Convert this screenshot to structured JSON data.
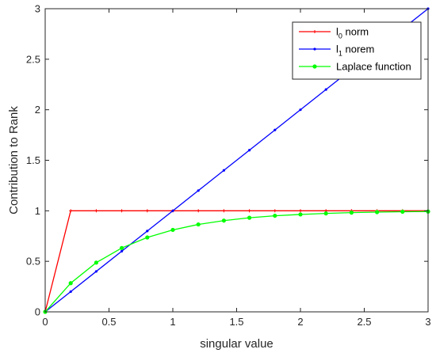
{
  "chart_data": {
    "type": "line",
    "xlabel": "singular value",
    "ylabel": "Contribution to Rank",
    "xlim": [
      0,
      3
    ],
    "ylim": [
      0,
      3
    ],
    "xticks": [
      "0",
      "0.5",
      "1",
      "1.5",
      "2",
      "2.5",
      "3"
    ],
    "yticks": [
      "0",
      "0.5",
      "1",
      "1.5",
      "2",
      "2.5",
      "3"
    ],
    "grid": false,
    "legend_position": "top-right",
    "x": [
      0,
      0.2,
      0.4,
      0.6,
      0.8,
      1.0,
      1.2,
      1.4,
      1.6,
      1.8,
      2.0,
      2.2,
      2.4,
      2.6,
      2.8,
      3.0
    ],
    "series": [
      {
        "name": "l0 norm",
        "legend_main": "l",
        "legend_sub": "0",
        "legend_rest": " norm",
        "color": "#ff0000",
        "marker": "plus",
        "values": [
          0,
          1,
          1,
          1,
          1,
          1,
          1,
          1,
          1,
          1,
          1,
          1,
          1,
          1,
          1,
          1
        ]
      },
      {
        "name": "l1 norem",
        "legend_main": "l",
        "legend_sub": "1",
        "legend_rest": " norem",
        "color": "#0000ff",
        "marker": "dot",
        "values": [
          0,
          0.2,
          0.4,
          0.6,
          0.8,
          1.0,
          1.2,
          1.4,
          1.6,
          1.8,
          2.0,
          2.2,
          2.4,
          2.6,
          2.8,
          3.0
        ]
      },
      {
        "name": "Laplace function",
        "legend_main": "Laplace function",
        "legend_sub": "",
        "legend_rest": "",
        "color": "#00ff00",
        "marker": "circle",
        "values": [
          0,
          0.284,
          0.487,
          0.632,
          0.736,
          0.811,
          0.865,
          0.903,
          0.931,
          0.951,
          0.964,
          0.974,
          0.982,
          0.987,
          0.991,
          0.993
        ]
      }
    ]
  }
}
